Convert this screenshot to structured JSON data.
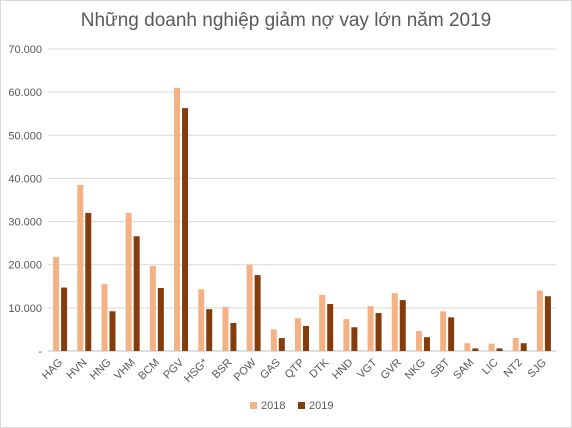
{
  "chart_data": {
    "type": "bar",
    "title": "Những doanh nghiệp giảm nợ vay lớn năm 2019",
    "xlabel": "",
    "ylabel": "",
    "ylim": [
      0,
      70000
    ],
    "yticks": [
      "-",
      "10.000",
      "20.000",
      "30.000",
      "40.000",
      "50.000",
      "60.000",
      "70.000"
    ],
    "grid": true,
    "legend": "bottom",
    "categories": [
      "HAG",
      "HVN",
      "HNG",
      "VHM",
      "BCM",
      "PGV",
      "HSG*",
      "BSR",
      "POW",
      "GAS",
      "QTP",
      "DTK",
      "HND",
      "VGT",
      "GVR",
      "NKG",
      "SBT",
      "SAM",
      "LIC",
      "NT2",
      "SJG"
    ],
    "series": [
      {
        "name": "2018",
        "color": "#f4b183",
        "values": [
          21800,
          38500,
          15500,
          32000,
          19700,
          61000,
          14300,
          10200,
          20000,
          5000,
          7600,
          13000,
          7400,
          10400,
          13400,
          4600,
          9200,
          1800,
          1700,
          3000,
          14000
        ]
      },
      {
        "name": "2019",
        "color": "#843c0c",
        "values": [
          14700,
          32000,
          9200,
          26600,
          14600,
          56300,
          9700,
          6500,
          17600,
          3000,
          5800,
          10900,
          5500,
          8800,
          11800,
          3200,
          7800,
          600,
          600,
          1800,
          12700
        ]
      }
    ]
  }
}
